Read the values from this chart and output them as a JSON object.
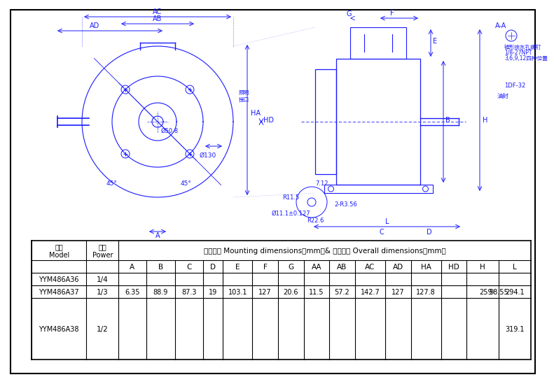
{
  "title": "",
  "bg_color": "#ffffff",
  "border_color": "#000000",
  "drawing_color": "#1a1aff",
  "dim_color": "#1a1aff",
  "table": {
    "header1": [
      "型号\nModel",
      "功率\nPower",
      "安装尺寸 Mounting dimensions（mm）＆外形尺寸 Overall dimensions（mm）"
    ],
    "header2": [
      "",
      "",
      "A",
      "B",
      "C",
      "D",
      "E",
      "F",
      "G",
      "AA",
      "AB",
      "AC",
      "AD",
      "HA",
      "HD",
      "H",
      "L"
    ],
    "rows": [
      [
        "YYM486A36",
        "1/4",
        "",
        "",
        "",
        "",
        "",
        "",
        "",
        "",
        "",
        "",
        "",
        "",
        "",
        "",
        ""
      ],
      [
        "YYM486A37",
        "1/3",
        "6.35",
        "88.9",
        "87.3",
        "19",
        "103.1",
        "127",
        "20.6",
        "11.5",
        "57.2",
        "142.7",
        "127",
        "127.8",
        "259",
        "98.55",
        "294.1"
      ],
      [
        "YYM486A38",
        "1/2",
        "",
        "",
        "",
        "",
        "",
        "",
        "",
        "",
        "",
        "",
        "",
        "",
        "",
        "",
        "319.1"
      ]
    ]
  },
  "annotations": {
    "left_dims": [
      "AC",
      "AB",
      "AD",
      "HA",
      "HD",
      "A",
      "Ø50.8",
      "Ø130",
      "45°",
      "45°",
      "照明接口"
    ],
    "right_dims": [
      "G",
      "F",
      "A-A",
      "E",
      "B",
      "H",
      "D",
      "C",
      "R11.5",
      "2-R3.56",
      "Ø11.1±0.127",
      "7.12",
      "R22.6",
      "1/8-27NPT",
      "3,6,9,12四种位置",
      "锥形排水孔螺钉",
      "1DF-32",
      "油封",
      "A"
    ]
  }
}
